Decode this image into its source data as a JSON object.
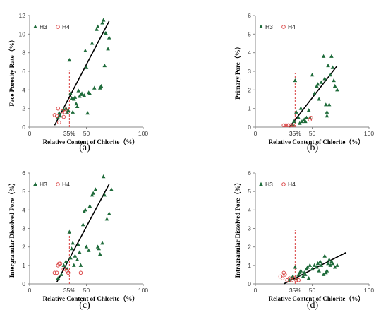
{
  "chart_data": [
    {
      "panel": "(a)",
      "type": "scatter",
      "xlabel": "Relative Content of Chlorite（%）",
      "ylabel": "Face Porosity Rate（%）",
      "xlim": [
        0,
        100
      ],
      "ylim": [
        0,
        12
      ],
      "xticks": [
        "0",
        "50",
        "100"
      ],
      "yticks": [
        "0",
        "2",
        "4",
        "6",
        "8",
        "10",
        "12"
      ],
      "legend_placement": "top-left",
      "threshold": {
        "x": 35,
        "label": "35%",
        "ymax": 6.1
      },
      "fit_line": {
        "x": [
          22,
          70
        ],
        "y": [
          0.2,
          11.4
        ]
      },
      "series": [
        {
          "name": "H3",
          "marker": "filled-triangle",
          "color": "#1e6b3a",
          "points": [
            [
              25,
              1.0
            ],
            [
              26,
              1.5
            ],
            [
              27,
              1.2
            ],
            [
              30,
              1.9
            ],
            [
              32,
              2.0
            ],
            [
              33,
              1.6
            ],
            [
              34,
              1.8
            ],
            [
              35,
              7.2
            ],
            [
              36,
              3.6
            ],
            [
              37,
              3.1
            ],
            [
              38,
              1.6
            ],
            [
              39,
              3.0
            ],
            [
              40,
              3.2
            ],
            [
              41,
              2.5
            ],
            [
              42,
              2.2
            ],
            [
              43,
              3.9
            ],
            [
              44,
              3.3
            ],
            [
              45,
              3.5
            ],
            [
              46,
              3.6
            ],
            [
              48,
              3.4
            ],
            [
              49,
              8.2
            ],
            [
              50,
              6.4
            ],
            [
              51,
              1.5
            ],
            [
              52,
              3.7
            ],
            [
              53,
              3.6
            ],
            [
              55,
              9.0
            ],
            [
              57,
              4.2
            ],
            [
              59,
              10.5
            ],
            [
              60,
              10.8
            ],
            [
              62,
              4.2
            ],
            [
              63,
              4.4
            ],
            [
              64,
              11.2
            ],
            [
              65,
              11.5
            ],
            [
              66,
              6.6
            ],
            [
              67,
              10.1
            ],
            [
              69,
              8.4
            ],
            [
              70,
              9.6
            ]
          ]
        },
        {
          "name": "H4",
          "marker": "open-circle",
          "color": "#d94040",
          "points": [
            [
              22,
              1.3
            ],
            [
              24,
              1.2
            ],
            [
              25,
              2.0
            ],
            [
              26,
              0.5
            ],
            [
              29,
              1.7
            ],
            [
              30,
              1.1
            ],
            [
              31,
              1.6
            ],
            [
              33,
              2.0
            ]
          ]
        }
      ]
    },
    {
      "panel": "(b)",
      "type": "scatter",
      "xlabel": "Relative Content of Chlorite（%）",
      "ylabel": "Primary Pore（%）",
      "xlim": [
        0,
        100
      ],
      "ylim": [
        0,
        6
      ],
      "xticks": [
        "0",
        "50",
        "100"
      ],
      "yticks": [
        "0",
        "1",
        "2",
        "3",
        "4",
        "5",
        "6"
      ],
      "legend_placement": "top-left",
      "threshold": {
        "x": 35,
        "label": "35%",
        "ymax": 2.9
      },
      "fit_line": {
        "x": [
          30,
          72
        ],
        "y": [
          0.0,
          3.3
        ]
      },
      "series": [
        {
          "name": "H3",
          "marker": "filled-triangle",
          "color": "#1e6b3a",
          "points": [
            [
              33,
              0.1
            ],
            [
              34,
              0.3
            ],
            [
              35,
              2.5
            ],
            [
              36,
              0.8
            ],
            [
              38,
              0.5
            ],
            [
              39,
              0.2
            ],
            [
              40,
              1.0
            ],
            [
              41,
              0.3
            ],
            [
              43,
              0.4
            ],
            [
              44,
              0.3
            ],
            [
              45,
              0.5
            ],
            [
              47,
              0.9
            ],
            [
              48,
              0.5
            ],
            [
              50,
              2.8
            ],
            [
              52,
              1.8
            ],
            [
              54,
              2.2
            ],
            [
              55,
              2.3
            ],
            [
              56,
              1.5
            ],
            [
              58,
              2.4
            ],
            [
              60,
              3.8
            ],
            [
              61,
              2.6
            ],
            [
              62,
              1.2
            ],
            [
              64,
              3.3
            ],
            [
              65,
              1.2
            ],
            [
              66,
              2.8
            ],
            [
              67,
              3.8
            ],
            [
              68,
              3.2
            ],
            [
              69,
              2.5
            ],
            [
              70,
              2.2
            ],
            [
              72,
              2.0
            ],
            [
              63,
              0.6
            ],
            [
              63,
              0.8
            ]
          ]
        },
        {
          "name": "H4",
          "marker": "open-circle",
          "color": "#d94040",
          "points": [
            [
              25,
              0.1
            ],
            [
              27,
              0.1
            ],
            [
              29,
              0.1
            ],
            [
              31,
              0.1
            ],
            [
              33,
              0.1
            ],
            [
              48,
              0.4
            ],
            [
              49,
              0.5
            ]
          ]
        }
      ]
    },
    {
      "panel": "(c)",
      "type": "scatter",
      "xlabel": "Relative Content of Chlorite（%）",
      "ylabel": "Intergranular Dissolved Pore（%）",
      "xlim": [
        0,
        100
      ],
      "ylim": [
        0,
        6
      ],
      "xticks": [
        "0",
        "50",
        "100"
      ],
      "yticks": [
        "0",
        "1",
        "2",
        "3",
        "4",
        "5",
        "6"
      ],
      "legend_placement": "top-left",
      "threshold": {
        "x": 35,
        "label": "35%",
        "ymax": 2.8
      },
      "fit_line": {
        "x": [
          24,
          70
        ],
        "y": [
          0.1,
          5.4
        ]
      },
      "series": [
        {
          "name": "H3",
          "marker": "filled-triangle",
          "color": "#1e6b3a",
          "points": [
            [
              25,
              0.3
            ],
            [
              28,
              0.5
            ],
            [
              30,
              1.0
            ],
            [
              32,
              1.2
            ],
            [
              33,
              0.8
            ],
            [
              35,
              2.8
            ],
            [
              36,
              1.4
            ],
            [
              37,
              1.9
            ],
            [
              38,
              2.2
            ],
            [
              39,
              1.0
            ],
            [
              40,
              1.5
            ],
            [
              42,
              1.3
            ],
            [
              43,
              2.1
            ],
            [
              44,
              1.7
            ],
            [
              45,
              1.0
            ],
            [
              47,
              3.2
            ],
            [
              48,
              3.9
            ],
            [
              49,
              4.0
            ],
            [
              50,
              2.0
            ],
            [
              52,
              1.8
            ],
            [
              53,
              4.2
            ],
            [
              55,
              4.8
            ],
            [
              56,
              4.9
            ],
            [
              58,
              5.1
            ],
            [
              60,
              2.0
            ],
            [
              61,
              1.9
            ],
            [
              62,
              1.6
            ],
            [
              64,
              2.2
            ],
            [
              65,
              5.8
            ],
            [
              66,
              4.8
            ],
            [
              68,
              3.5
            ],
            [
              70,
              3.8
            ],
            [
              72,
              5.1
            ]
          ]
        },
        {
          "name": "H4",
          "marker": "open-circle",
          "color": "#d94040",
          "points": [
            [
              22,
              0.6
            ],
            [
              24,
              0.6
            ],
            [
              25,
              1.0
            ],
            [
              26,
              1.1
            ],
            [
              27,
              1.1
            ],
            [
              30,
              0.8
            ],
            [
              33,
              0.7
            ],
            [
              34,
              0.6
            ],
            [
              45,
              0.6
            ]
          ]
        }
      ]
    },
    {
      "panel": "(d)",
      "type": "scatter",
      "xlabel": "Relative Content of Chlorite（%）",
      "ylabel": "Intragranular Dissolved Pore（%）",
      "xlim": [
        0,
        100
      ],
      "ylim": [
        0,
        6
      ],
      "xticks": [
        "0",
        "50",
        "100"
      ],
      "yticks": [
        "0",
        "1",
        "2",
        "3",
        "4",
        "5",
        "6"
      ],
      "legend_placement": "top-left",
      "threshold": {
        "x": 35,
        "label": "35%",
        "ymax": 2.9
      },
      "fit_line": {
        "x": [
          25,
          80
        ],
        "y": [
          0.0,
          1.7
        ]
      },
      "series": [
        {
          "name": "H3",
          "marker": "filled-triangle",
          "color": "#1e6b3a",
          "points": [
            [
              30,
              0.2
            ],
            [
              32,
              0.3
            ],
            [
              33,
              0.4
            ],
            [
              35,
              0.9
            ],
            [
              36,
              0.3
            ],
            [
              38,
              0.5
            ],
            [
              39,
              0.6
            ],
            [
              40,
              0.7
            ],
            [
              42,
              0.4
            ],
            [
              43,
              0.6
            ],
            [
              44,
              0.5
            ],
            [
              45,
              0.8
            ],
            [
              46,
              0.9
            ],
            [
              47,
              0.3
            ],
            [
              48,
              1.0
            ],
            [
              50,
              0.8
            ],
            [
              52,
              1.0
            ],
            [
              54,
              0.9
            ],
            [
              55,
              1.1
            ],
            [
              56,
              0.7
            ],
            [
              57,
              1.2
            ],
            [
              58,
              1.0
            ],
            [
              60,
              0.5
            ],
            [
              61,
              1.5
            ],
            [
              62,
              0.6
            ],
            [
              63,
              0.7
            ],
            [
              64,
              1.1
            ],
            [
              65,
              1.3
            ],
            [
              66,
              1.0
            ],
            [
              67,
              1.2
            ],
            [
              68,
              1.1
            ],
            [
              70,
              0.9
            ],
            [
              72,
              1.0
            ]
          ]
        },
        {
          "name": "H4",
          "marker": "open-circle",
          "color": "#d94040",
          "points": [
            [
              22,
              0.4
            ],
            [
              24,
              0.3
            ],
            [
              25,
              0.6
            ],
            [
              26,
              0.5
            ],
            [
              28,
              0.2
            ],
            [
              30,
              0.3
            ],
            [
              32,
              0.2
            ],
            [
              34,
              0.3
            ],
            [
              36,
              0.2
            ],
            [
              38,
              0.2
            ]
          ]
        }
      ]
    }
  ]
}
